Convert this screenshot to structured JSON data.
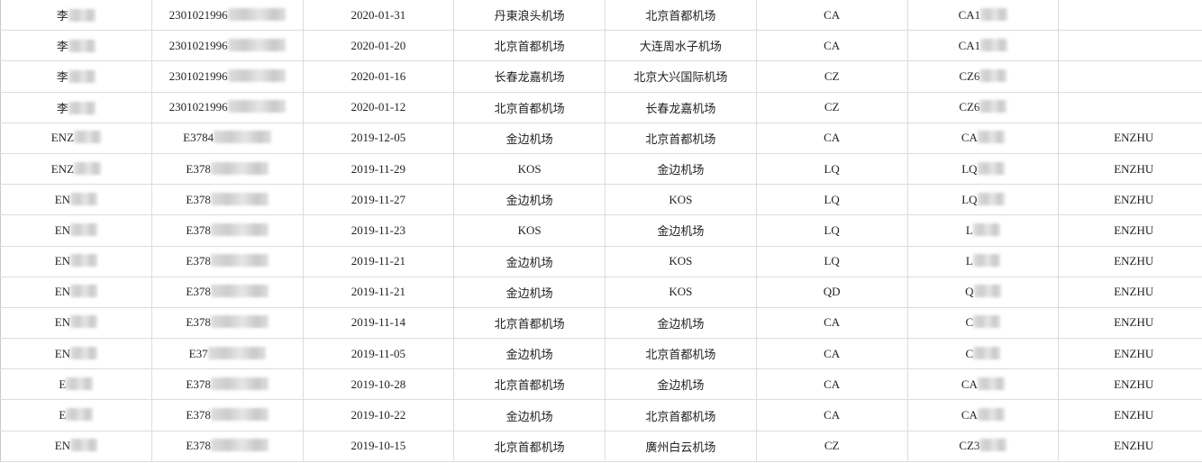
{
  "rows": [
    [
      "李",
      "2301021996",
      "2020-01-31",
      "丹東浪头机场",
      "北京首都机场",
      "CA",
      "CA1",
      ""
    ],
    [
      "李",
      "2301021996",
      "2020-01-20",
      "北京首都机场",
      "大连周水子机场",
      "CA",
      "CA1",
      ""
    ],
    [
      "李",
      "2301021996",
      "2020-01-16",
      "长春龙嘉机场",
      "北京大兴国际机场",
      "CZ",
      "CZ6",
      ""
    ],
    [
      "李",
      "2301021996",
      "2020-01-12",
      "北京首都机场",
      "长春龙嘉机场",
      "CZ",
      "CZ6",
      ""
    ],
    [
      "ENZ",
      "E3784",
      "2019-12-05",
      "金边机场",
      "北京首都机场",
      "CA",
      "CA",
      "ENZHU"
    ],
    [
      "ENZ",
      "E378",
      "2019-11-29",
      "KOS",
      "金边机场",
      "LQ",
      "LQ",
      "ENZHU"
    ],
    [
      "EN",
      "E378",
      "2019-11-27",
      "金边机场",
      "KOS",
      "LQ",
      "LQ",
      "ENZHU"
    ],
    [
      "EN",
      "E378",
      "2019-11-23",
      "KOS",
      "金边机场",
      "LQ",
      "L",
      "ENZHU"
    ],
    [
      "EN",
      "E378",
      "2019-11-21",
      "金边机场",
      "KOS",
      "LQ",
      "L",
      "ENZHU"
    ],
    [
      "EN",
      "E378",
      "2019-11-21",
      "金边机场",
      "KOS",
      "QD",
      "Q",
      "ENZHU"
    ],
    [
      "EN",
      "E378",
      "2019-11-14",
      "北京首都机场",
      "金边机场",
      "CA",
      "C",
      "ENZHU"
    ],
    [
      "EN",
      "E37",
      "2019-11-05",
      "金边机场",
      "北京首都机场",
      "CA",
      "C",
      "ENZHU"
    ],
    [
      "E",
      "E378",
      "2019-10-28",
      "北京首都机场",
      "金边机场",
      "CA",
      "CA",
      "ENZHU"
    ],
    [
      "E",
      "E378",
      "2019-10-22",
      "金边机场",
      "北京首都机场",
      "CA",
      "CA",
      "ENZHU"
    ],
    [
      "EN",
      "E378",
      "2019-10-15",
      "北京首都机场",
      "廣州白云机场",
      "CZ",
      "CZ3",
      "ENZHU"
    ]
  ]
}
